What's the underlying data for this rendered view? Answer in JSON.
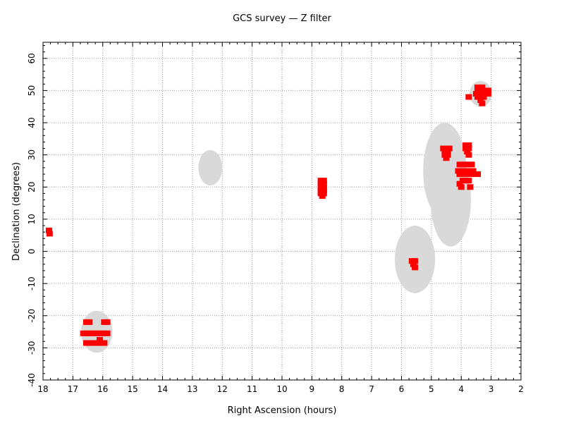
{
  "chart_data": {
    "type": "scatter",
    "title": "GCS survey — Z filter",
    "xlabel": "Right Ascension (hours)",
    "ylabel": "Declination (degrees)",
    "xlim": [
      18,
      2
    ],
    "ylim": [
      -40,
      65
    ],
    "x_ticks": [
      18,
      17,
      16,
      15,
      14,
      13,
      12,
      11,
      10,
      9,
      8,
      7,
      6,
      5,
      4,
      3,
      2
    ],
    "y_ticks": [
      -40,
      -30,
      -20,
      -10,
      0,
      10,
      20,
      30,
      40,
      50,
      60
    ],
    "grid": true,
    "colors": {
      "points": "#ff0000",
      "regions": "#d9d9d9",
      "grid": "#9a9a9a",
      "axes": "#000000"
    },
    "regions": [
      {
        "ra": 16.2,
        "dec": -25,
        "ra_width": 1.05,
        "dec_height": 13
      },
      {
        "ra": 12.4,
        "dec": 26,
        "ra_width": 0.8,
        "dec_height": 11
      },
      {
        "ra": 5.55,
        "dec": -2.5,
        "ra_width": 1.35,
        "dec_height": 21
      },
      {
        "ra": 4.55,
        "dec": 25,
        "ra_width": 1.45,
        "dec_height": 30
      },
      {
        "ra": 4.35,
        "dec": 16,
        "ra_width": 1.35,
        "dec_height": 29
      },
      {
        "ra": 3.35,
        "dec": 49,
        "ra_width": 0.75,
        "dec_height": 8
      }
    ],
    "series": [
      {
        "points": [
          [
            17.8,
            6.5
          ],
          [
            17.78,
            5.5
          ],
          [
            16.55,
            -22
          ],
          [
            16.45,
            -22
          ],
          [
            15.95,
            -22
          ],
          [
            15.85,
            -22
          ],
          [
            16.65,
            -25.5
          ],
          [
            16.55,
            -25.5
          ],
          [
            16.45,
            -25.5
          ],
          [
            16.35,
            -25.5
          ],
          [
            16.25,
            -25.5
          ],
          [
            16.15,
            -25.5
          ],
          [
            16.05,
            -25.5
          ],
          [
            15.95,
            -25.5
          ],
          [
            15.85,
            -25.5
          ],
          [
            16.55,
            -28.5
          ],
          [
            16.45,
            -28.5
          ],
          [
            16.35,
            -28.5
          ],
          [
            16.25,
            -28.5
          ],
          [
            16.15,
            -28.5
          ],
          [
            16.05,
            -28.5
          ],
          [
            15.95,
            -28.5
          ],
          [
            16.1,
            -27.5
          ],
          [
            8.7,
            22
          ],
          [
            8.6,
            22
          ],
          [
            8.7,
            21
          ],
          [
            8.6,
            21
          ],
          [
            8.7,
            20
          ],
          [
            8.6,
            20
          ],
          [
            8.7,
            19
          ],
          [
            8.6,
            19
          ],
          [
            8.7,
            18
          ],
          [
            8.6,
            18
          ],
          [
            8.65,
            17.2
          ],
          [
            5.65,
            -3
          ],
          [
            5.55,
            -3
          ],
          [
            5.6,
            -4
          ],
          [
            5.55,
            -5
          ],
          [
            4.6,
            32
          ],
          [
            4.5,
            32
          ],
          [
            4.4,
            32
          ],
          [
            4.55,
            31
          ],
          [
            4.45,
            31
          ],
          [
            4.55,
            30
          ],
          [
            4.45,
            30
          ],
          [
            4.5,
            29
          ],
          [
            3.85,
            33
          ],
          [
            3.75,
            33
          ],
          [
            3.85,
            32
          ],
          [
            3.75,
            32
          ],
          [
            3.8,
            31
          ],
          [
            3.75,
            30
          ],
          [
            4.05,
            27
          ],
          [
            3.95,
            27
          ],
          [
            3.85,
            27
          ],
          [
            3.75,
            27
          ],
          [
            3.65,
            27
          ],
          [
            4.1,
            25
          ],
          [
            4.0,
            25
          ],
          [
            3.9,
            25
          ],
          [
            3.8,
            25
          ],
          [
            3.7,
            25
          ],
          [
            3.6,
            25
          ],
          [
            4.05,
            24
          ],
          [
            3.95,
            24
          ],
          [
            3.85,
            24
          ],
          [
            3.75,
            24
          ],
          [
            3.65,
            24
          ],
          [
            3.45,
            24
          ],
          [
            3.95,
            22
          ],
          [
            3.85,
            22
          ],
          [
            3.75,
            22
          ],
          [
            4.05,
            21
          ],
          [
            4.0,
            20
          ],
          [
            3.7,
            20
          ],
          [
            3.45,
            51
          ],
          [
            3.3,
            51
          ],
          [
            3.45,
            50
          ],
          [
            3.35,
            50
          ],
          [
            3.25,
            50
          ],
          [
            3.1,
            50
          ],
          [
            3.5,
            49
          ],
          [
            3.4,
            49
          ],
          [
            3.3,
            49
          ],
          [
            3.2,
            49
          ],
          [
            3.1,
            49
          ],
          [
            3.75,
            48
          ],
          [
            3.45,
            48
          ],
          [
            3.35,
            48
          ],
          [
            3.25,
            48
          ],
          [
            3.35,
            47
          ],
          [
            3.3,
            46
          ]
        ]
      }
    ]
  }
}
